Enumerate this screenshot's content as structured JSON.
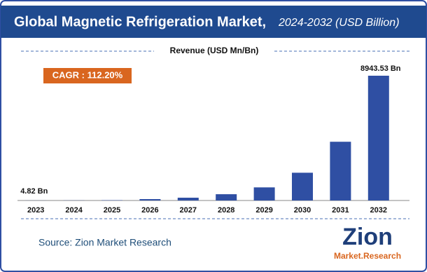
{
  "chart_data": {
    "type": "bar",
    "title": "Global Magnetic Refrigeration Market,",
    "subtitle": "2024-2032 (USD Billion)",
    "axis_label": "Revenue (USD Mn/Bn)",
    "annotation": "CAGR : 112.20%",
    "source": "Source: Zion Market Research",
    "logo": {
      "top": "Zion",
      "bottom": "Market.Research"
    },
    "categories": [
      "2023",
      "2024",
      "2025",
      "2026",
      "2027",
      "2028",
      "2029",
      "2030",
      "2031",
      "2032"
    ],
    "values": [
      4.82,
      10,
      22,
      100,
      200,
      450,
      940,
      1990,
      4210,
      8943.53
    ],
    "value_labels": [
      "4.82 Bn",
      null,
      null,
      null,
      null,
      null,
      null,
      null,
      null,
      "8943.53 Bn"
    ],
    "color": "#2f4fa3"
  }
}
